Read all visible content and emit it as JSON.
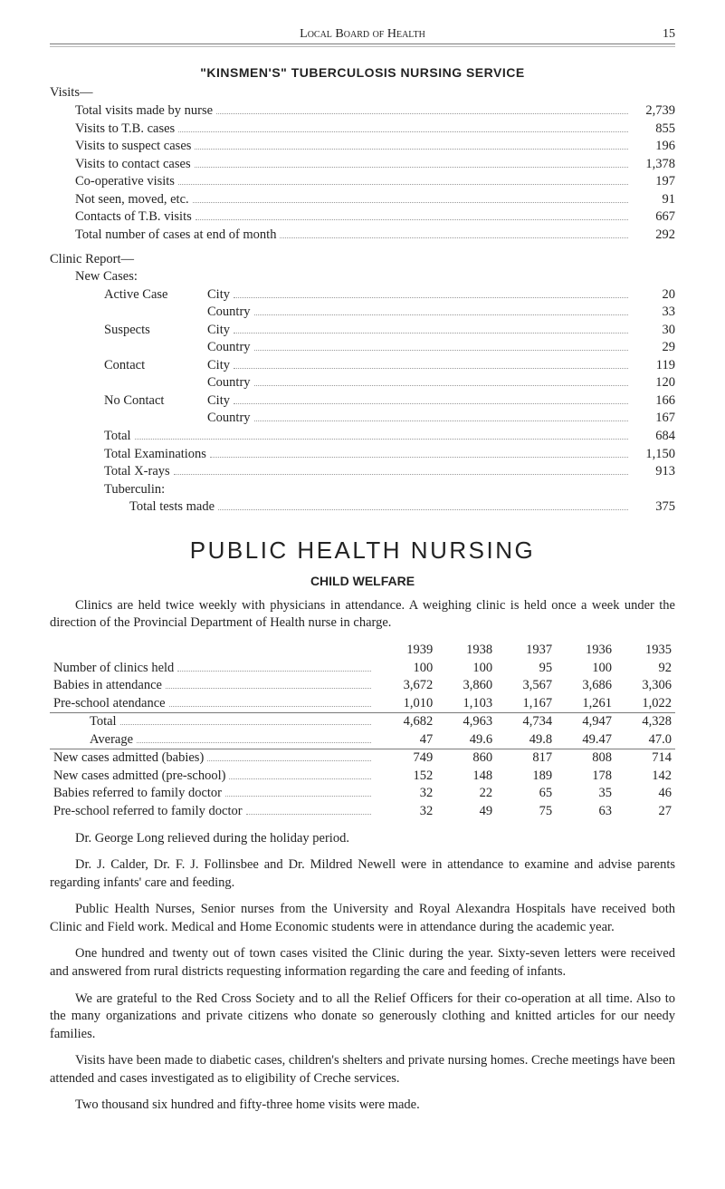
{
  "page": {
    "running_head": "Local Board of Health",
    "page_number": "15"
  },
  "kinsmen": {
    "title": "\"KINSMEN'S\" TUBERCULOSIS NURSING SERVICE",
    "visits_label": "Visits—",
    "visit_rows": [
      {
        "label": "Total visits made by nurse",
        "value": "2,739"
      },
      {
        "label": "Visits to T.B. cases",
        "value": "855"
      },
      {
        "label": "Visits to suspect cases",
        "value": "196"
      },
      {
        "label": "Visits to contact cases",
        "value": "1,378"
      },
      {
        "label": "Co-operative visits",
        "value": "197"
      },
      {
        "label": "Not seen, moved, etc.",
        "value": "91"
      },
      {
        "label": "Contacts of T.B. visits",
        "value": "667"
      },
      {
        "label": "Total number of cases at end of month",
        "value": "292"
      }
    ],
    "clinic_report_label": "Clinic Report—",
    "new_cases_label": "New Cases:",
    "case_rows": [
      {
        "left": "Active Case",
        "mid": "City",
        "value": "20"
      },
      {
        "left": "",
        "mid": "Country",
        "value": "33"
      },
      {
        "left": "Suspects",
        "mid": "City",
        "value": "30"
      },
      {
        "left": "",
        "mid": "Country",
        "value": "29"
      },
      {
        "left": "Contact",
        "mid": "City",
        "value": "119"
      },
      {
        "left": "",
        "mid": "Country",
        "value": "120"
      },
      {
        "left": "No Contact",
        "mid": "City",
        "value": "166"
      },
      {
        "left": "",
        "mid": "Country",
        "value": "167"
      }
    ],
    "totals": [
      {
        "label": "Total",
        "value": "684"
      },
      {
        "label": "Total Examinations",
        "value": "1,150"
      },
      {
        "label": "Total X-rays",
        "value": "913"
      }
    ],
    "tuberculin_label": "Tuberculin:",
    "tuberculin_row": {
      "label": "Total tests made",
      "value": "375"
    }
  },
  "phn": {
    "title": "PUBLIC HEALTH NURSING",
    "subhead": "CHILD WELFARE",
    "intro": "Clinics are held twice weekly with physicians in attendance. A weighing clinic is held once a week under the direction of the Provincial Department of Health nurse in charge.",
    "years": [
      "1939",
      "1938",
      "1937",
      "1936",
      "1935"
    ],
    "rows_top": [
      {
        "label": "Number of clinics held",
        "vals": [
          "100",
          "100",
          "95",
          "100",
          "92"
        ]
      },
      {
        "label": "Babies in attendance",
        "vals": [
          "3,672",
          "3,860",
          "3,567",
          "3,686",
          "3,306"
        ]
      },
      {
        "label": "Pre-school atendance",
        "vals": [
          "1,010",
          "1,103",
          "1,167",
          "1,261",
          "1,022"
        ]
      }
    ],
    "rows_mid": [
      {
        "label": "Total",
        "vals": [
          "4,682",
          "4,963",
          "4,734",
          "4,947",
          "4,328"
        ]
      },
      {
        "label": "Average",
        "vals": [
          "47",
          "49.6",
          "49.8",
          "49.47",
          "47.0"
        ]
      }
    ],
    "rows_bot": [
      {
        "label": "New cases admitted (babies)",
        "vals": [
          "749",
          "860",
          "817",
          "808",
          "714"
        ]
      },
      {
        "label": "New cases admitted (pre-school)",
        "vals": [
          "152",
          "148",
          "189",
          "178",
          "142"
        ]
      },
      {
        "label": "Babies referred to family doctor",
        "vals": [
          "32",
          "22",
          "65",
          "35",
          "46"
        ]
      },
      {
        "label": "Pre-school referred to family doctor",
        "vals": [
          "32",
          "49",
          "75",
          "63",
          "27"
        ]
      }
    ],
    "paras": [
      "Dr. George Long relieved during the holiday period.",
      "Dr. J. Calder, Dr. F. J. Follinsbee and Dr. Mildred Newell were in at­tendance to examine and advise parents regarding infants' care and feeding.",
      "Public Health Nurses, Senior nurses from the University and Royal Alexandra Hospitals have received both Clinic and Field work. Medical and Home Economic students were in attendance during the academic year.",
      "One hundred and twenty out of town cases visited the Clinic during the year. Sixty-seven letters were received and answered from rural districts requesting information regarding the care and feeding of infants.",
      "We are grateful to the Red Cross Society and to all the Relief Officers for their co-operation at all time. Also to the many organizations and private citizens who donate so generously clothing and knitted articles for our needy families.",
      "Visits have been made to diabetic cases, children's shelters and private nursing homes. Creche meetings have been attended and cases investigated as to eligibility of Creche services.",
      "Two thousand six hundred and fifty-three home visits were made."
    ]
  }
}
